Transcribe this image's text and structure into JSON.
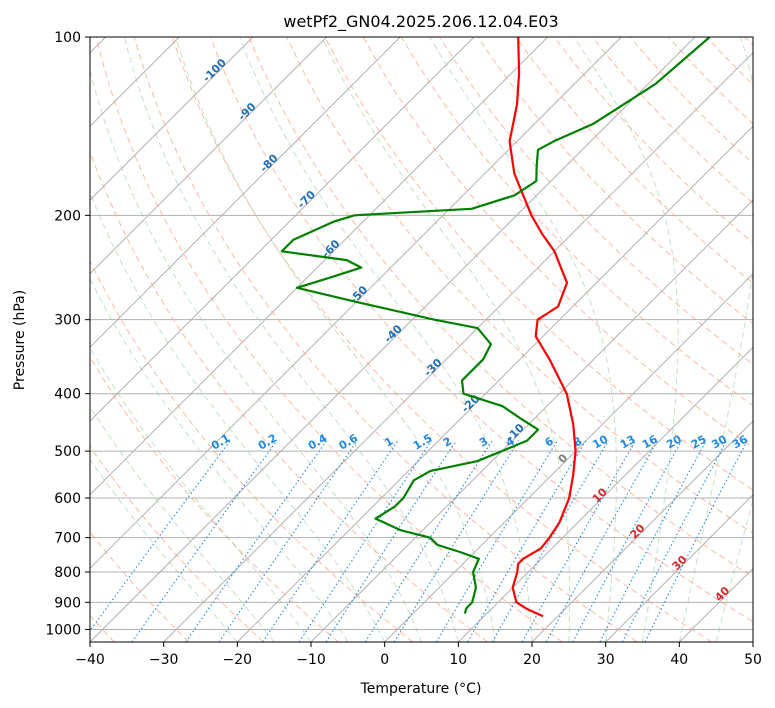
{
  "chart_data": {
    "type": "line",
    "title": "wetPf2_GN04.2025.206.12.04.E03",
    "xlabel": "Temperature (°C)",
    "ylabel": "Pressure (hPa)",
    "xlim": [
      -40,
      50
    ],
    "ylim": [
      1050,
      100
    ],
    "y_scale": "log",
    "skew": "skew-T log-p",
    "grid": true,
    "x_ticks": [
      "−40",
      "−30",
      "−20",
      "−10",
      "0",
      "10",
      "20",
      "30",
      "40",
      "50"
    ],
    "y_ticks": [
      "100",
      "200",
      "300",
      "400",
      "500",
      "600",
      "700",
      "800",
      "900",
      "1000"
    ],
    "series": [
      {
        "color": "#ff0000",
        "points": [
          {
            "p": 950,
            "t": 18
          },
          {
            "p": 925,
            "t": 15
          },
          {
            "p": 900,
            "t": 12.5
          },
          {
            "p": 850,
            "t": 10
          },
          {
            "p": 800,
            "t": 8.5
          },
          {
            "p": 775,
            "t": 7.5
          },
          {
            "p": 760,
            "t": 7.5
          },
          {
            "p": 730,
            "t": 8.5
          },
          {
            "p": 700,
            "t": 8.2
          },
          {
            "p": 660,
            "t": 7.5
          },
          {
            "p": 600,
            "t": 5.5
          },
          {
            "p": 550,
            "t": 3
          },
          {
            "p": 500,
            "t": 0
          },
          {
            "p": 450,
            "t": -4
          },
          {
            "p": 400,
            "t": -9
          },
          {
            "p": 350,
            "t": -16
          },
          {
            "p": 320,
            "t": -21
          },
          {
            "p": 300,
            "t": -23
          },
          {
            "p": 285,
            "t": -22
          },
          {
            "p": 260,
            "t": -24
          },
          {
            "p": 230,
            "t": -30
          },
          {
            "p": 215,
            "t": -34
          },
          {
            "p": 200,
            "t": -38
          },
          {
            "p": 170,
            "t": -46
          },
          {
            "p": 150,
            "t": -51
          },
          {
            "p": 130,
            "t": -55
          },
          {
            "p": 115,
            "t": -59
          },
          {
            "p": 100,
            "t": -64
          }
        ]
      },
      {
        "color": "#008000",
        "points": [
          {
            "p": 940,
            "t": 7
          },
          {
            "p": 920,
            "t": 6.5
          },
          {
            "p": 900,
            "t": 6.5
          },
          {
            "p": 850,
            "t": 5
          },
          {
            "p": 800,
            "t": 2.5
          },
          {
            "p": 760,
            "t": 1.5
          },
          {
            "p": 740,
            "t": -2
          },
          {
            "p": 720,
            "t": -6
          },
          {
            "p": 700,
            "t": -8
          },
          {
            "p": 680,
            "t": -13
          },
          {
            "p": 650,
            "t": -18
          },
          {
            "p": 620,
            "t": -17
          },
          {
            "p": 600,
            "t": -17
          },
          {
            "p": 560,
            "t": -18
          },
          {
            "p": 540,
            "t": -17
          },
          {
            "p": 520,
            "t": -12
          },
          {
            "p": 500,
            "t": -10
          },
          {
            "p": 480,
            "t": -8
          },
          {
            "p": 460,
            "t": -8
          },
          {
            "p": 440,
            "t": -12
          },
          {
            "p": 420,
            "t": -16
          },
          {
            "p": 400,
            "t": -23
          },
          {
            "p": 380,
            "t": -25
          },
          {
            "p": 350,
            "t": -25
          },
          {
            "p": 330,
            "t": -26
          },
          {
            "p": 310,
            "t": -30
          },
          {
            "p": 300,
            "t": -37
          },
          {
            "p": 280,
            "t": -50
          },
          {
            "p": 265,
            "t": -60
          },
          {
            "p": 255,
            "t": -57
          },
          {
            "p": 245,
            "t": -54
          },
          {
            "p": 238,
            "t": -57
          },
          {
            "p": 230,
            "t": -67
          },
          {
            "p": 220,
            "t": -67
          },
          {
            "p": 205,
            "t": -64
          },
          {
            "p": 200,
            "t": -62
          },
          {
            "p": 195,
            "t": -47
          },
          {
            "p": 185,
            "t": -43
          },
          {
            "p": 175,
            "t": -42
          },
          {
            "p": 165,
            "t": -44
          },
          {
            "p": 155,
            "t": -46
          },
          {
            "p": 150,
            "t": -45
          },
          {
            "p": 140,
            "t": -42
          },
          {
            "p": 120,
            "t": -39
          },
          {
            "p": 100,
            "t": -38
          }
        ]
      }
    ],
    "dry_adiabat_labels": [
      "-100",
      "-90",
      "-80",
      "-70",
      "-60",
      "-50",
      "-40",
      "-30",
      "-20",
      "-10",
      "0",
      "10",
      "20",
      "30",
      "40"
    ],
    "mixing_ratio_labels": [
      "0.1",
      "0.2",
      "0.4",
      "0.6",
      "1",
      "1.5",
      "2",
      "3",
      "4",
      "6",
      "8",
      "10",
      "13",
      "16",
      "20",
      "25",
      "30",
      "36"
    ]
  }
}
